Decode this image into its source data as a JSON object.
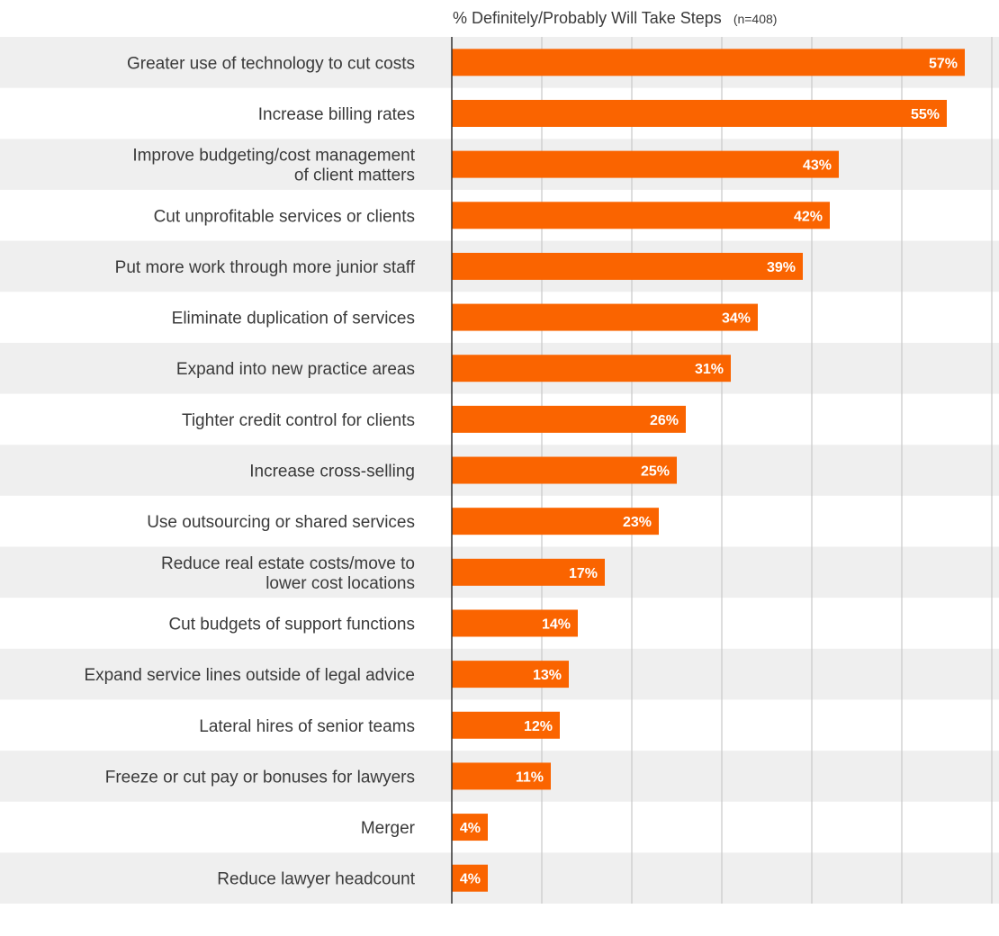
{
  "chart_data": {
    "type": "bar",
    "orientation": "horizontal",
    "title": "% Definitely/Probably Will Take Steps",
    "subtitle": "(n=408)",
    "categories": [
      "Greater use of technology to cut costs",
      "Increase billing rates",
      "Improve budgeting/cost management\nof client matters",
      "Cut unprofitable services or clients",
      "Put more work through more junior staff",
      "Eliminate duplication of services",
      "Expand into new practice areas",
      "Tighter credit control for clients",
      "Increase cross-selling",
      "Use outsourcing or shared services",
      "Reduce real estate costs/move to\nlower cost locations",
      "Cut budgets of support functions",
      "Expand service lines outside of legal advice",
      "Lateral hires of senior teams",
      "Freeze or cut pay or bonuses for lawyers",
      "Merger",
      "Reduce lawyer headcount"
    ],
    "values": [
      57,
      55,
      43,
      42,
      39,
      34,
      31,
      26,
      25,
      23,
      17,
      14,
      13,
      12,
      11,
      4,
      4
    ],
    "value_labels": [
      "57%",
      "55%",
      "43%",
      "42%",
      "39%",
      "34%",
      "31%",
      "26%",
      "25%",
      "23%",
      "17%",
      "14%",
      "13%",
      "12%",
      "11%",
      "4%",
      "4%"
    ],
    "xlim": [
      0,
      60
    ],
    "grid": true,
    "colors": {
      "bar": "#fa6400",
      "band": "#efefef",
      "text": "#3a3a3a",
      "grid": "#c8c8c8",
      "axis": "#333333"
    }
  }
}
